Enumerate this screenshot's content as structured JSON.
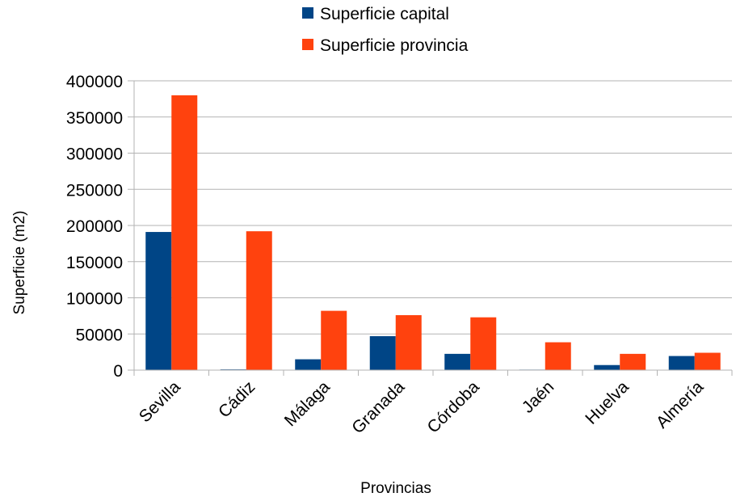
{
  "chart_data": {
    "type": "bar",
    "title": "",
    "xlabel": "Provincias",
    "ylabel": "Superficie (m2)",
    "ylim": [
      0,
      400000
    ],
    "yticks": [
      0,
      50000,
      100000,
      150000,
      200000,
      250000,
      300000,
      350000,
      400000
    ],
    "grid": true,
    "legend_position": "top",
    "categories": [
      "Sevilla",
      "Cádiz",
      "Málaga",
      "Granada",
      "Córdoba",
      "Jaén",
      "Huelva",
      "Almería"
    ],
    "series": [
      {
        "name": "Superficie capital",
        "color": "#004586",
        "values": [
          191000,
          1000,
          15000,
          47000,
          22500,
          700,
          7000,
          19500
        ]
      },
      {
        "name": "Superficie provincia",
        "color": "#ff420e",
        "values": [
          380000,
          192000,
          82000,
          76000,
          73000,
          38500,
          22500,
          24000
        ]
      }
    ]
  }
}
